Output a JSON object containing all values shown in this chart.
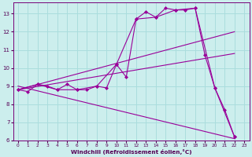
{
  "xlabel": "Windchill (Refroidissement éolien,°C)",
  "bg_color": "#cceeed",
  "grid_color": "#aadddd",
  "line_color": "#990099",
  "xlim_min": -0.5,
  "xlim_max": 23.5,
  "ylim_min": 6.0,
  "ylim_max": 13.6,
  "yticks": [
    6,
    7,
    8,
    9,
    10,
    11,
    12,
    13
  ],
  "xticks": [
    0,
    1,
    2,
    3,
    4,
    5,
    6,
    7,
    8,
    9,
    10,
    11,
    12,
    13,
    14,
    15,
    16,
    17,
    18,
    19,
    20,
    21,
    22,
    23
  ],
  "series": [
    {
      "x": [
        0,
        1,
        2,
        3,
        4,
        5,
        6,
        7,
        8,
        9,
        10,
        11,
        12,
        13,
        14,
        15,
        16,
        17,
        18,
        19,
        20,
        21,
        22
      ],
      "y": [
        8.8,
        8.7,
        9.1,
        9.0,
        8.8,
        9.1,
        8.8,
        8.8,
        9.0,
        8.9,
        10.2,
        9.5,
        12.7,
        13.1,
        12.8,
        13.3,
        13.2,
        13.2,
        13.3,
        10.7,
        8.9,
        7.7,
        6.2
      ]
    },
    {
      "x": [
        0,
        2,
        4,
        6,
        8,
        10,
        12,
        14,
        16,
        18,
        20,
        22
      ],
      "y": [
        8.8,
        9.1,
        8.8,
        8.8,
        9.0,
        10.2,
        12.7,
        12.8,
        13.2,
        13.3,
        8.9,
        6.2
      ]
    },
    {
      "x": [
        0,
        22
      ],
      "y": [
        8.8,
        12.0
      ]
    },
    {
      "x": [
        0,
        22
      ],
      "y": [
        8.8,
        10.8
      ]
    },
    {
      "x": [
        0,
        22
      ],
      "y": [
        9.0,
        6.1
      ]
    }
  ]
}
